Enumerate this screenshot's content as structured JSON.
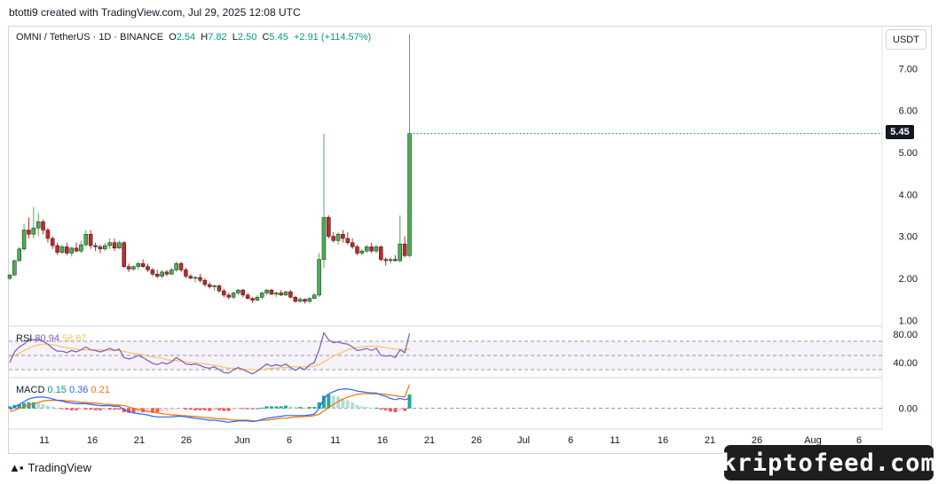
{
  "header": {
    "title": "btotti9 created with TradingView.com, Jul 29, 2025 12:08 UTC"
  },
  "legend": {
    "symbol": "OMNI / TetherUS · 1D · BINANCE",
    "open_label": "O",
    "open": "2.54",
    "high_label": "H",
    "high": "7.82",
    "low_label": "L",
    "low": "2.50",
    "close_label": "C",
    "close": "5.45",
    "change": "+2.91 (+114.57%)"
  },
  "currency_button": "USDT",
  "last_price": "5.45",
  "rsi_legend": {
    "label": "RSI",
    "value": "80.94",
    "ma": "58.87"
  },
  "macd_legend": {
    "label": "MACD",
    "macd": "0.15",
    "signal": "0.36",
    "hist": "0.21"
  },
  "footer": {
    "brand": "TradingView",
    "watermark": "kriptofeed.com"
  },
  "colors": {
    "up": "#089981",
    "up_body": "#4caf50",
    "down": "#f23645",
    "down_body": "#c62828",
    "rsi": "#7e57c2",
    "rsi_ma": "#f7c560",
    "macd": "#2962ff",
    "signal": "#ff6d00"
  },
  "chart_data": [
    {
      "type": "candlestick",
      "title": "OMNI / TetherUS · 1D · BINANCE",
      "y_ticks": [
        "7.00",
        "6.00",
        "5.00",
        "4.00",
        "3.00",
        "2.00",
        "1.00"
      ],
      "ylim": [
        0.9,
        8.0
      ],
      "x_ticks": [
        "11",
        "16",
        "21",
        "26",
        "Jun",
        "6",
        "11",
        "16",
        "21",
        "26",
        "Jul",
        "6",
        "11",
        "16",
        "21",
        "26",
        "Aug",
        "6"
      ],
      "start_date": "2025-05-06",
      "candles": [
        [
          2.0,
          2.1,
          1.95,
          2.08
        ],
        [
          2.08,
          2.45,
          2.05,
          2.42
        ],
        [
          2.42,
          2.75,
          2.4,
          2.7
        ],
        [
          2.7,
          3.3,
          2.65,
          3.15
        ],
        [
          3.15,
          3.45,
          2.95,
          3.05
        ],
        [
          3.05,
          3.7,
          2.95,
          3.2
        ],
        [
          3.2,
          3.55,
          3.0,
          3.35
        ],
        [
          3.35,
          3.4,
          3.05,
          3.15
        ],
        [
          3.15,
          3.2,
          2.85,
          2.95
        ],
        [
          2.95,
          3.0,
          2.7,
          2.78
        ],
        [
          2.78,
          2.85,
          2.55,
          2.62
        ],
        [
          2.62,
          2.8,
          2.58,
          2.75
        ],
        [
          2.75,
          2.85,
          2.55,
          2.6
        ],
        [
          2.6,
          2.75,
          2.52,
          2.72
        ],
        [
          2.72,
          2.85,
          2.62,
          2.65
        ],
        [
          2.65,
          2.9,
          2.6,
          2.8
        ],
        [
          2.8,
          3.15,
          2.75,
          3.05
        ],
        [
          3.05,
          3.15,
          2.7,
          2.78
        ],
        [
          2.78,
          2.85,
          2.65,
          2.75
        ],
        [
          2.75,
          2.8,
          2.6,
          2.7
        ],
        [
          2.7,
          2.85,
          2.65,
          2.78
        ],
        [
          2.78,
          2.95,
          2.7,
          2.85
        ],
        [
          2.85,
          2.95,
          2.65,
          2.72
        ],
        [
          2.72,
          2.9,
          2.7,
          2.85
        ],
        [
          2.85,
          2.88,
          2.25,
          2.28
        ],
        [
          2.28,
          2.35,
          2.15,
          2.22
        ],
        [
          2.22,
          2.3,
          2.18,
          2.28
        ],
        [
          2.28,
          2.4,
          2.2,
          2.35
        ],
        [
          2.35,
          2.45,
          2.25,
          2.28
        ],
        [
          2.28,
          2.35,
          2.15,
          2.2
        ],
        [
          2.2,
          2.25,
          2.05,
          2.1
        ],
        [
          2.1,
          2.2,
          2.0,
          2.05
        ],
        [
          2.05,
          2.2,
          2.0,
          2.15
        ],
        [
          2.15,
          2.2,
          2.05,
          2.1
        ],
        [
          2.1,
          2.25,
          2.08,
          2.2
        ],
        [
          2.2,
          2.4,
          2.15,
          2.35
        ],
        [
          2.35,
          2.4,
          2.15,
          2.2
        ],
        [
          2.2,
          2.25,
          2.0,
          2.05
        ],
        [
          2.05,
          2.1,
          1.98,
          2.0
        ],
        [
          2.0,
          2.05,
          1.9,
          2.02
        ],
        [
          2.02,
          2.1,
          1.9,
          1.95
        ],
        [
          1.95,
          2.0,
          1.8,
          1.85
        ],
        [
          1.85,
          1.9,
          1.75,
          1.8
        ],
        [
          1.8,
          1.85,
          1.7,
          1.82
        ],
        [
          1.82,
          1.85,
          1.65,
          1.7
        ],
        [
          1.7,
          1.75,
          1.55,
          1.6
        ],
        [
          1.6,
          1.65,
          1.5,
          1.55
        ],
        [
          1.55,
          1.68,
          1.5,
          1.65
        ],
        [
          1.65,
          1.75,
          1.6,
          1.72
        ],
        [
          1.72,
          1.75,
          1.55,
          1.6
        ],
        [
          1.6,
          1.65,
          1.5,
          1.52
        ],
        [
          1.52,
          1.55,
          1.42,
          1.48
        ],
        [
          1.48,
          1.6,
          1.45,
          1.55
        ],
        [
          1.55,
          1.68,
          1.5,
          1.65
        ],
        [
          1.65,
          1.75,
          1.6,
          1.72
        ],
        [
          1.72,
          1.75,
          1.6,
          1.62
        ],
        [
          1.62,
          1.68,
          1.55,
          1.65
        ],
        [
          1.65,
          1.72,
          1.58,
          1.6
        ],
        [
          1.6,
          1.7,
          1.58,
          1.68
        ],
        [
          1.68,
          1.72,
          1.52,
          1.55
        ],
        [
          1.55,
          1.58,
          1.42,
          1.45
        ],
        [
          1.45,
          1.55,
          1.42,
          1.5
        ],
        [
          1.5,
          1.52,
          1.4,
          1.45
        ],
        [
          1.45,
          1.55,
          1.4,
          1.52
        ],
        [
          1.52,
          1.65,
          1.5,
          1.6
        ],
        [
          1.6,
          2.6,
          1.55,
          2.45
        ],
        [
          2.45,
          5.45,
          2.25,
          3.45
        ],
        [
          3.45,
          3.5,
          2.95,
          3.0
        ],
        [
          3.0,
          3.1,
          2.85,
          2.9
        ],
        [
          2.9,
          3.1,
          2.8,
          3.05
        ],
        [
          3.05,
          3.15,
          2.85,
          2.95
        ],
        [
          2.95,
          3.1,
          2.8,
          2.85
        ],
        [
          2.85,
          2.95,
          2.7,
          2.75
        ],
        [
          2.75,
          2.8,
          2.55,
          2.6
        ],
        [
          2.6,
          2.7,
          2.55,
          2.65
        ],
        [
          2.65,
          2.8,
          2.6,
          2.75
        ],
        [
          2.75,
          2.85,
          2.6,
          2.65
        ],
        [
          2.65,
          2.8,
          2.6,
          2.75
        ],
        [
          2.75,
          2.78,
          2.4,
          2.45
        ],
        [
          2.45,
          2.5,
          2.3,
          2.42
        ],
        [
          2.42,
          2.5,
          2.35,
          2.45
        ],
        [
          2.45,
          2.55,
          2.4,
          2.42
        ],
        [
          2.42,
          3.5,
          2.38,
          2.82
        ],
        [
          2.82,
          3.0,
          2.5,
          2.54
        ],
        [
          2.54,
          7.82,
          2.5,
          5.45
        ]
      ]
    },
    {
      "type": "line",
      "title": "RSI",
      "y_ticks": [
        "80.00",
        "40.00"
      ],
      "ylim": [
        20,
        90
      ],
      "series": [
        {
          "name": "RSI",
          "values": [
            40,
            55,
            62,
            66,
            72,
            72,
            73,
            70,
            66,
            60,
            56,
            56,
            54,
            57,
            55,
            58,
            62,
            58,
            57,
            55,
            57,
            60,
            57,
            59,
            47,
            45,
            47,
            50,
            47,
            43,
            39,
            37,
            40,
            38,
            41,
            47,
            43,
            38,
            37,
            38,
            36,
            33,
            32,
            34,
            30,
            26,
            25,
            30,
            33,
            30,
            27,
            24,
            28,
            33,
            38,
            35,
            37,
            35,
            38,
            33,
            29,
            33,
            30,
            37,
            40,
            58,
            82,
            72,
            68,
            69,
            67,
            66,
            62,
            57,
            58,
            60,
            57,
            60,
            50,
            49,
            50,
            47,
            58,
            54,
            80.94
          ]
        },
        {
          "name": "58.87",
          "values": [
            48,
            50,
            53,
            57,
            60,
            63,
            65,
            66,
            66,
            65,
            64,
            62,
            61,
            60,
            59,
            58,
            58,
            58,
            58,
            58,
            58,
            57,
            57,
            57,
            56,
            54,
            53,
            52,
            51,
            49,
            48,
            47,
            46,
            44,
            43,
            43,
            42,
            41,
            40,
            40,
            39,
            38,
            37,
            36,
            35,
            33,
            32,
            32,
            31,
            31,
            30,
            30,
            30,
            30,
            31,
            32,
            32,
            33,
            33,
            34,
            34,
            34,
            34,
            34,
            35,
            37,
            41,
            45,
            49,
            52,
            55,
            58,
            60,
            61,
            62,
            63,
            63,
            63,
            62,
            61,
            60,
            59,
            59,
            58,
            58.87
          ]
        }
      ]
    },
    {
      "type": "bar",
      "title": "MACD",
      "y_ticks": [
        "0.00"
      ],
      "ylim": [
        -0.3,
        0.45
      ],
      "series": [
        {
          "name": "0.15",
          "values": [
            -0.02,
            0.02,
            0.06,
            0.1,
            0.14,
            0.16,
            0.17,
            0.17,
            0.16,
            0.14,
            0.12,
            0.11,
            0.09,
            0.08,
            0.07,
            0.07,
            0.07,
            0.06,
            0.05,
            0.04,
            0.04,
            0.04,
            0.03,
            0.03,
            -0.02,
            -0.05,
            -0.07,
            -0.08,
            -0.09,
            -0.1,
            -0.12,
            -0.13,
            -0.13,
            -0.13,
            -0.13,
            -0.12,
            -0.12,
            -0.13,
            -0.14,
            -0.15,
            -0.16,
            -0.17,
            -0.18,
            -0.18,
            -0.19,
            -0.2,
            -0.21,
            -0.2,
            -0.19,
            -0.19,
            -0.19,
            -0.2,
            -0.19,
            -0.17,
            -0.15,
            -0.14,
            -0.13,
            -0.12,
            -0.11,
            -0.11,
            -0.11,
            -0.11,
            -0.11,
            -0.1,
            -0.09,
            0.0,
            0.15,
            0.22,
            0.25,
            0.28,
            0.29,
            0.29,
            0.28,
            0.26,
            0.25,
            0.24,
            0.23,
            0.23,
            0.2,
            0.18,
            0.15,
            0.13,
            0.15,
            0.13,
            0.15
          ]
        },
        {
          "name": "0.36",
          "values": [
            -0.05,
            -0.03,
            0.0,
            0.02,
            0.05,
            0.07,
            0.09,
            0.11,
            0.12,
            0.12,
            0.12,
            0.12,
            0.11,
            0.11,
            0.1,
            0.09,
            0.09,
            0.08,
            0.08,
            0.07,
            0.06,
            0.06,
            0.05,
            0.05,
            0.04,
            0.02,
            0.0,
            -0.02,
            -0.03,
            -0.05,
            -0.06,
            -0.07,
            -0.08,
            -0.09,
            -0.1,
            -0.1,
            -0.11,
            -0.11,
            -0.12,
            -0.12,
            -0.13,
            -0.14,
            -0.14,
            -0.15,
            -0.16,
            -0.16,
            -0.17,
            -0.18,
            -0.18,
            -0.18,
            -0.18,
            -0.19,
            -0.19,
            -0.18,
            -0.18,
            -0.17,
            -0.16,
            -0.15,
            -0.15,
            -0.14,
            -0.13,
            -0.13,
            -0.12,
            -0.12,
            -0.11,
            -0.09,
            -0.04,
            0.01,
            0.06,
            0.1,
            0.14,
            0.17,
            0.19,
            0.21,
            0.22,
            0.22,
            0.22,
            0.22,
            0.22,
            0.21,
            0.2,
            0.19,
            0.18,
            0.17,
            0.36
          ]
        },
        {
          "name": "0.21",
          "values": [
            0.03,
            0.05,
            0.06,
            0.08,
            0.09,
            0.09,
            0.08,
            0.06,
            0.04,
            0.02,
            0.0,
            -0.01,
            -0.02,
            -0.03,
            -0.03,
            -0.02,
            -0.02,
            -0.02,
            -0.03,
            -0.03,
            -0.02,
            -0.02,
            -0.02,
            -0.02,
            -0.06,
            -0.07,
            -0.07,
            -0.06,
            -0.06,
            -0.05,
            -0.06,
            -0.06,
            -0.05,
            -0.04,
            -0.03,
            -0.02,
            -0.01,
            -0.02,
            -0.02,
            -0.03,
            -0.03,
            -0.03,
            -0.04,
            -0.03,
            -0.03,
            -0.04,
            -0.04,
            -0.02,
            -0.01,
            -0.01,
            -0.01,
            -0.01,
            0.0,
            0.01,
            0.03,
            0.03,
            0.03,
            0.03,
            0.04,
            0.03,
            0.02,
            0.02,
            0.01,
            0.02,
            0.02,
            0.09,
            0.19,
            0.21,
            0.19,
            0.18,
            0.15,
            0.12,
            0.09,
            0.05,
            0.03,
            0.02,
            0.01,
            0.01,
            -0.02,
            -0.03,
            -0.05,
            -0.06,
            -0.03,
            -0.04,
            0.21
          ]
        }
      ]
    }
  ]
}
